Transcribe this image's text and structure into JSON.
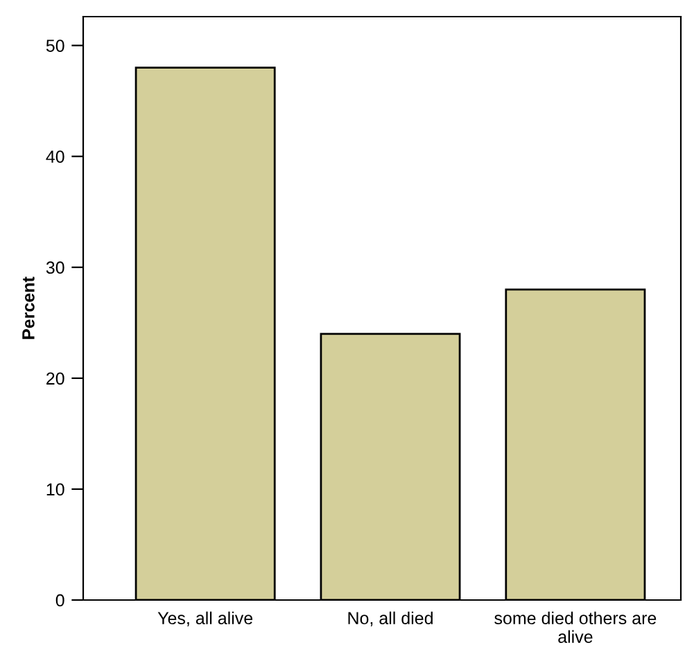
{
  "chart_data": {
    "type": "bar",
    "ylabel": "Percent",
    "categories": [
      "Yes, all alive",
      "No, all died",
      "some died others are\nalive"
    ],
    "values": [
      48,
      24,
      28
    ],
    "color": "#d4cf9a",
    "ylim": [
      0,
      52.6
    ],
    "yticks": [
      0,
      10,
      20,
      30,
      40,
      50
    ],
    "grid": false
  }
}
